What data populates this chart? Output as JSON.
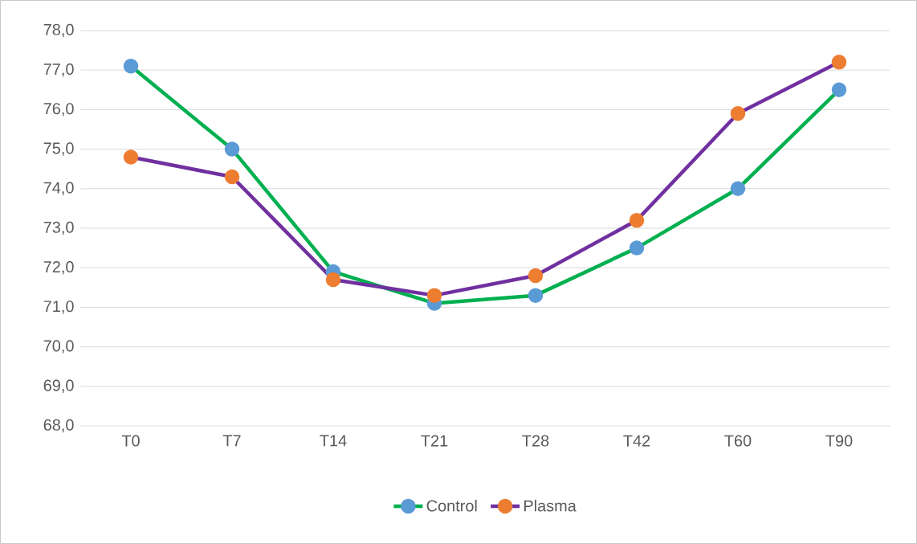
{
  "chart_data": {
    "type": "line",
    "categories": [
      "T0",
      "T7",
      "T14",
      "T21",
      "T28",
      "T42",
      "T60",
      "T90"
    ],
    "series": [
      {
        "name": "Control",
        "color": "#00b050",
        "colors": [
          "#5b9bd5",
          "#5b9bd5",
          "#5b9bd5",
          "#5b9bd5",
          "#5b9bd5",
          "#5b9bd5",
          "#5b9bd5",
          "#5b9bd5"
        ],
        "values": [
          77.1,
          75.0,
          71.9,
          71.1,
          71.3,
          72.5,
          74.0,
          76.5
        ]
      },
      {
        "name": "Plasma",
        "color": "#7030a0",
        "colors": [
          "#ed7d31",
          "#ed7d31",
          "#ed7d31",
          "#ed7d31",
          "#ed7d31",
          "#ed7d31",
          "#ed7d31",
          "#ed7d31"
        ],
        "values": [
          74.8,
          74.3,
          71.7,
          71.3,
          71.8,
          73.2,
          75.9,
          77.2
        ]
      }
    ],
    "ylim": [
      68,
      78
    ],
    "yticks": [
      {
        "value": 68,
        "label": "68,0"
      },
      {
        "value": 69,
        "label": "69,0"
      },
      {
        "value": 70,
        "label": "70,0"
      },
      {
        "value": 71,
        "label": "71,0"
      },
      {
        "value": 72,
        "label": "72,0"
      },
      {
        "value": 73,
        "label": "73,0"
      },
      {
        "value": 74,
        "label": "74,0"
      },
      {
        "value": 75,
        "label": "75,0"
      },
      {
        "value": 76,
        "label": "76,0"
      },
      {
        "value": 77,
        "label": "77,0"
      },
      {
        "value": 78,
        "label": "78,0"
      }
    ],
    "grid": "y",
    "legend": "bottom",
    "marker": "circle",
    "line_style": "solid"
  }
}
